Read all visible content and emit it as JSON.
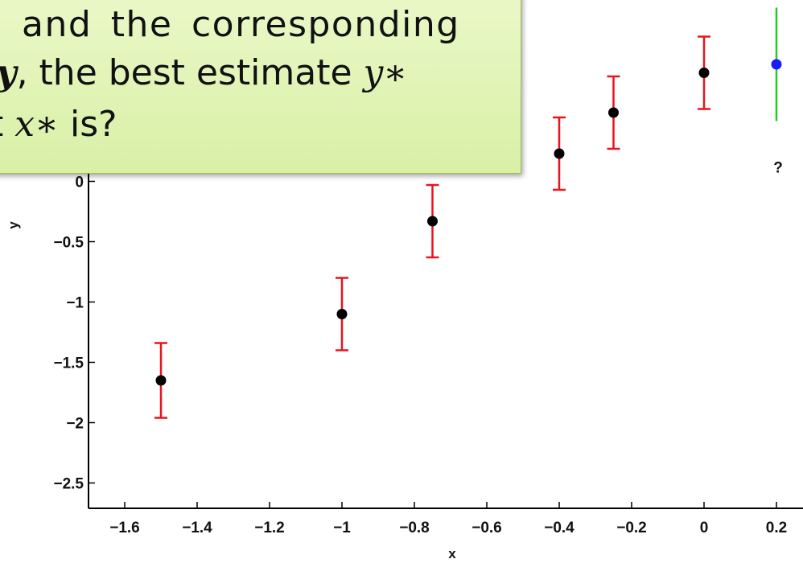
{
  "chart_data": {
    "type": "errorbar",
    "xlabel": "x",
    "ylabel": "y",
    "xlim": [
      -1.7,
      0.3
    ],
    "ylim": [
      -2.71,
      1.5
    ],
    "xticks": [
      {
        "value": -1.6,
        "label": "−1.6"
      },
      {
        "value": -1.4,
        "label": "−1.4"
      },
      {
        "value": -1.2,
        "label": "−1.2"
      },
      {
        "value": -1,
        "label": "−1"
      },
      {
        "value": -0.8,
        "label": "−0.8"
      },
      {
        "value": -0.6,
        "label": "−0.6"
      },
      {
        "value": -0.4,
        "label": "−0.4"
      },
      {
        "value": -0.2,
        "label": "−0.2"
      },
      0,
      0.2
    ],
    "yticks": [
      {
        "value": -2.5,
        "label": "−2.5"
      },
      {
        "value": -2,
        "label": "−2"
      },
      {
        "value": -1.5,
        "label": "−1.5"
      },
      {
        "value": -1,
        "label": "−1"
      },
      {
        "value": -0.5,
        "label": "−0.5"
      },
      0
    ],
    "series": [
      {
        "x": [
          -1.5,
          -1,
          -0.75,
          -0.4,
          -0.25,
          0
        ],
        "values": [
          -1.65,
          -1.1,
          -0.33,
          0.23,
          0.57,
          0.9
        ],
        "errors": [
          0.31,
          0.3,
          0.3,
          0.3,
          0.3,
          0.3
        ],
        "color": "#000000",
        "error_color": "#e8141e"
      },
      {
        "x": [
          0.2
        ],
        "values": [
          0.97
        ],
        "errors": [
          0.47
        ],
        "color": "#1a1aff",
        "error_color": "#22cc22",
        "annotation": "?"
      }
    ]
  },
  "callout": {
    "line1": "and the corresponding",
    "line2": [
      "y",
      ", the best estimate ",
      "y∗"
    ],
    "line3": [
      "t ",
      "x∗",
      " is?"
    ]
  }
}
